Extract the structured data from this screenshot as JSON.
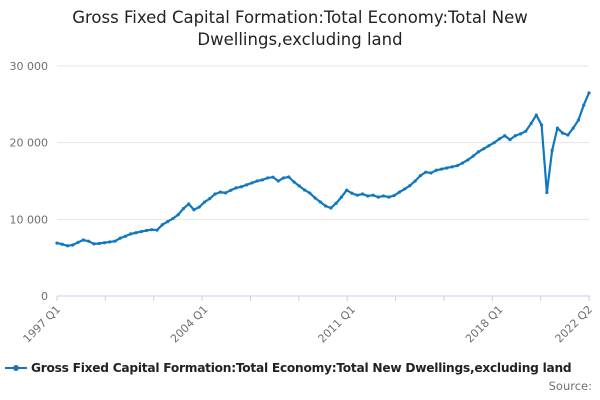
{
  "header": {
    "title_line1": "Gross Fixed Capital Formation:Total Economy:Total New",
    "title_line2": "Dwellings,excluding land"
  },
  "legend": {
    "label": "Gross Fixed Capital Formation:Total Economy:Total New Dwellings,excluding land"
  },
  "footer": {
    "source_label": "Source:"
  },
  "colors": {
    "series": "#1178be",
    "grid": "#e6e6e6",
    "axis": "#c6d0e6",
    "text_dark": "#222222",
    "text_muted": "#6f6f6f",
    "background": "#ffffff"
  },
  "chart_data": {
    "type": "line",
    "title": "Gross Fixed Capital Formation:Total Economy:Total New Dwellings,excluding land",
    "x_unit": "quarter",
    "x_start": "1997 Q1",
    "x_end": "2022 Q2",
    "x_tick_labels": [
      "1997 Q1",
      "2004 Q1",
      "2011 Q1",
      "2018 Q1",
      "2022 Q2"
    ],
    "x_tick_positions": [
      0,
      28,
      56,
      84,
      101
    ],
    "x_minor_tick_count": 12,
    "ylim": [
      0,
      30000
    ],
    "y_ticks": [
      0,
      10000,
      20000,
      30000
    ],
    "y_tick_labels": [
      "0",
      "10 000",
      "20 000",
      "30 000"
    ],
    "grid": "horizontal",
    "legend_position": "bottom-left",
    "series": [
      {
        "name": "Gross Fixed Capital Formation:Total Economy:Total New Dwellings,excluding land",
        "color": "#1178be",
        "marker": "circle",
        "values": [
          6900,
          6750,
          6550,
          6650,
          7000,
          7300,
          7150,
          6800,
          6850,
          6950,
          7050,
          7150,
          7550,
          7800,
          8100,
          8250,
          8400,
          8550,
          8650,
          8600,
          9300,
          9700,
          10100,
          10600,
          11400,
          12000,
          11250,
          11600,
          12250,
          12700,
          13300,
          13550,
          13450,
          13800,
          14100,
          14250,
          14500,
          14750,
          15000,
          15150,
          15400,
          15500,
          15000,
          15400,
          15520,
          14870,
          14350,
          13830,
          13430,
          12780,
          12260,
          11740,
          11480,
          12100,
          12900,
          13800,
          13400,
          13150,
          13300,
          13050,
          13150,
          12900,
          13050,
          12900,
          13100,
          13550,
          13950,
          14400,
          15000,
          15700,
          16150,
          16050,
          16400,
          16550,
          16700,
          16850,
          17000,
          17350,
          17750,
          18250,
          18800,
          19200,
          19600,
          20000,
          20500,
          20900,
          20400,
          20900,
          21150,
          21500,
          22500,
          23600,
          22300,
          13500,
          19000,
          21900,
          21250,
          21000,
          21900,
          22950,
          24900,
          26480
        ]
      }
    ]
  }
}
